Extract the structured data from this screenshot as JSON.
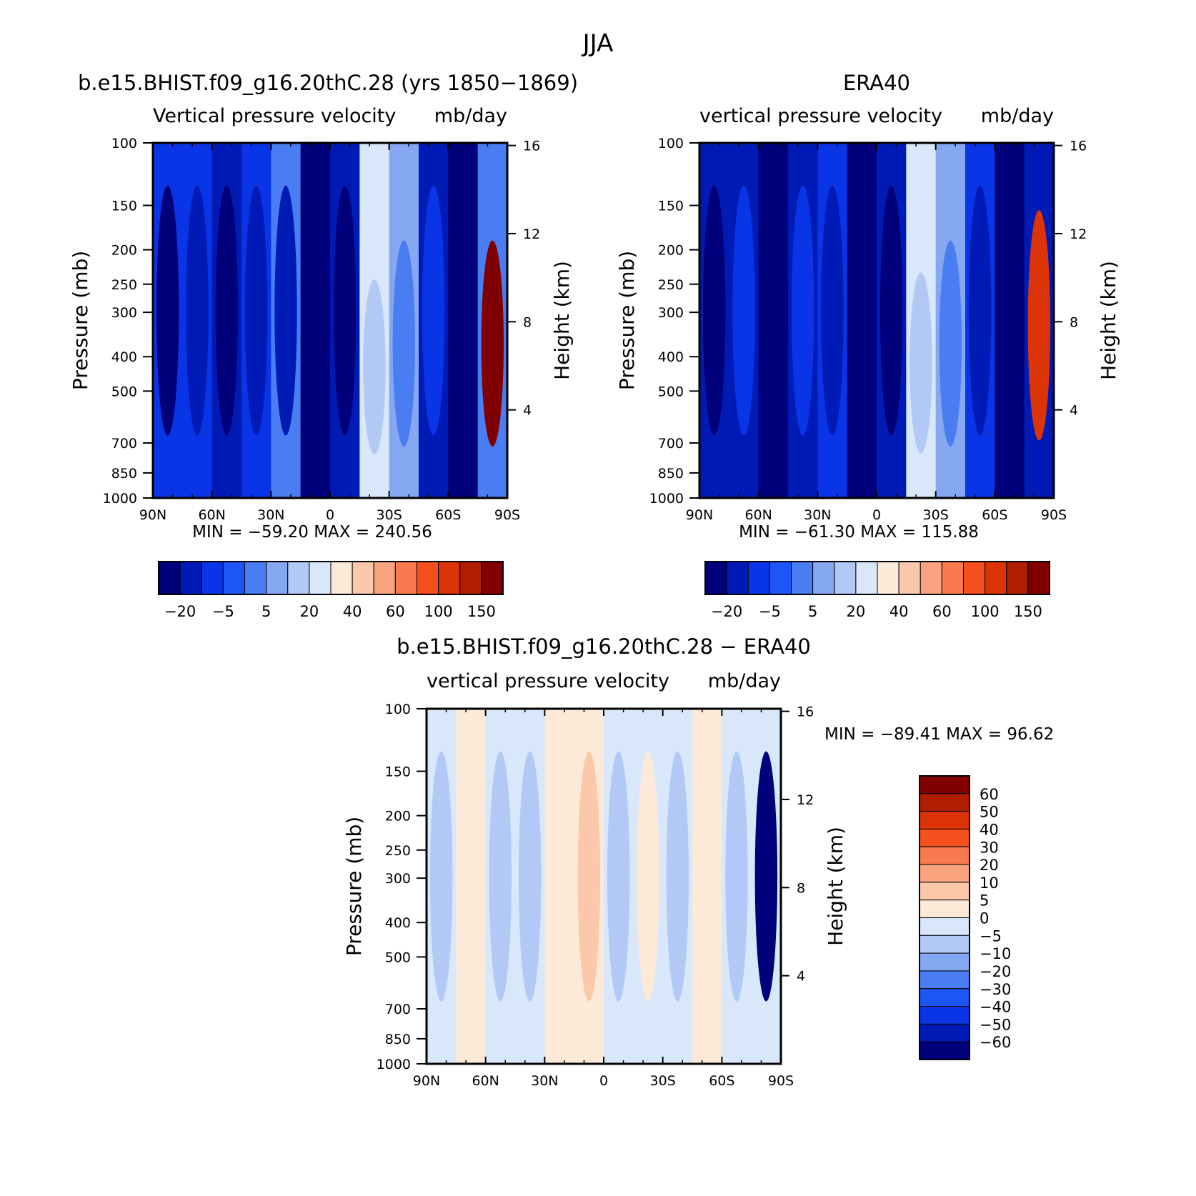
{
  "figure": {
    "title": "JJA"
  },
  "chart_data": [
    {
      "type": "heatmap",
      "title": "b.e15.BHIST.f09_g16.20thC.28 (yrs 1850−1869)",
      "subtitle_left": "Vertical pressure velocity",
      "subtitle_right": "mb/day",
      "xlabel": "",
      "ylabel": "Pressure (mb)",
      "ylabel_right": "Height (km)",
      "x_ticks": [
        "90N",
        "60N",
        "30N",
        "0",
        "30S",
        "60S",
        "90S"
      ],
      "y_ticks": [
        100,
        150,
        200,
        250,
        300,
        400,
        500,
        700,
        850,
        1000
      ],
      "y_scale": "log",
      "right_ticks": [
        16,
        12,
        8,
        4
      ],
      "min_max_text": "MIN = −59.20   MAX = 240.56",
      "colorbar_labels": [
        "−20",
        "−5",
        "5",
        "20",
        "40",
        "60",
        "100",
        "150"
      ],
      "colorbar_colors": [
        "#00007a",
        "#001bb5",
        "#0a35e6",
        "#1e56f5",
        "#4a7df2",
        "#86a8f2",
        "#b3c9f5",
        "#d8e7fa",
        "#fde9d8",
        "#fbc8ab",
        "#f9a37f",
        "#f97a4e",
        "#f5501e",
        "#dd3407",
        "#b01e02",
        "#800000"
      ],
      "columns": [
        {
          "lat": "90N",
          "base": -5,
          "strong_low": -20,
          "top": 100
        },
        {
          "lat": "75N",
          "base": -5,
          "strong_low": -10,
          "top": 100
        },
        {
          "lat": "60N",
          "base": -10,
          "strong_low": -20,
          "top": 100
        },
        {
          "lat": "45N",
          "base": -5,
          "strong_low": -10,
          "top": 100
        },
        {
          "lat": "30N",
          "base": 5,
          "strong_low": -10,
          "top": 100
        },
        {
          "lat": "10N",
          "base": -40,
          "strong_low": -59,
          "top": 180
        },
        {
          "lat": "0",
          "base": -10,
          "strong_low": -20,
          "top": 100
        },
        {
          "lat": "15S",
          "base": 30,
          "strong_low": 20,
          "top": 200
        },
        {
          "lat": "30S",
          "base": 10,
          "strong_low": 5,
          "top": 150
        },
        {
          "lat": "45S",
          "base": -10,
          "strong_low": -5,
          "top": 100
        },
        {
          "lat": "60S",
          "base": -30,
          "strong_low": -40,
          "top": 220
        },
        {
          "lat": "80S",
          "base": 5,
          "strong_low": 240,
          "top": 150
        }
      ]
    },
    {
      "type": "heatmap",
      "title": "ERA40",
      "subtitle_left": "vertical pressure velocity",
      "subtitle_right": "mb/day",
      "xlabel": "",
      "ylabel": "Pressure (mb)",
      "ylabel_right": "Height (km)",
      "x_ticks": [
        "90N",
        "60N",
        "30N",
        "0",
        "30S",
        "60S",
        "90S"
      ],
      "y_ticks": [
        100,
        150,
        200,
        250,
        300,
        400,
        500,
        700,
        850,
        1000
      ],
      "y_scale": "log",
      "right_ticks": [
        16,
        12,
        8,
        4
      ],
      "min_max_text": "MIN = −61.30   MAX = 115.88",
      "colorbar_labels": [
        "−20",
        "−5",
        "5",
        "20",
        "40",
        "60",
        "100",
        "150"
      ],
      "colorbar_colors": [
        "#00007a",
        "#001bb5",
        "#0a35e6",
        "#1e56f5",
        "#4a7df2",
        "#86a8f2",
        "#b3c9f5",
        "#d8e7fa",
        "#fde9d8",
        "#fbc8ab",
        "#f9a37f",
        "#f97a4e",
        "#f5501e",
        "#dd3407",
        "#b01e02",
        "#800000"
      ],
      "columns": [
        {
          "lat": "90N",
          "base": -10,
          "strong_low": -20,
          "top": 100
        },
        {
          "lat": "75N",
          "base": -10,
          "strong_low": -5,
          "top": 100
        },
        {
          "lat": "60N",
          "base": -20,
          "strong_low": -30,
          "top": 100
        },
        {
          "lat": "45N",
          "base": -10,
          "strong_low": -5,
          "top": 100
        },
        {
          "lat": "30N",
          "base": -5,
          "strong_low": -10,
          "top": 100
        },
        {
          "lat": "10N",
          "base": -40,
          "strong_low": -61,
          "top": 160
        },
        {
          "lat": "0",
          "base": -10,
          "strong_low": -20,
          "top": 100
        },
        {
          "lat": "15S",
          "base": 30,
          "strong_low": 20,
          "top": 190
        },
        {
          "lat": "30S",
          "base": 10,
          "strong_low": 5,
          "top": 150
        },
        {
          "lat": "45S",
          "base": -5,
          "strong_low": -10,
          "top": 100
        },
        {
          "lat": "60S",
          "base": -30,
          "strong_low": -40,
          "top": 250
        },
        {
          "lat": "80S",
          "base": -10,
          "strong_low": 115,
          "top": 120
        }
      ]
    },
    {
      "type": "heatmap",
      "title": "b.e15.BHIST.f09_g16.20thC.28 − ERA40",
      "subtitle_left": "vertical pressure velocity",
      "subtitle_right": "mb/day",
      "xlabel": "",
      "ylabel": "Pressure (mb)",
      "ylabel_right": "Height (km)",
      "x_ticks": [
        "90N",
        "60N",
        "30N",
        "0",
        "30S",
        "60S",
        "90S"
      ],
      "y_ticks": [
        100,
        150,
        200,
        250,
        300,
        400,
        500,
        700,
        850,
        1000
      ],
      "y_scale": "log",
      "right_ticks": [
        16,
        12,
        8,
        4
      ],
      "min_max_text": "MIN = −89.41   MAX =   96.62",
      "colorbar_labels": [
        "60",
        "50",
        "40",
        "30",
        "20",
        "10",
        "5",
        "0",
        "−5",
        "−10",
        "−20",
        "−30",
        "−40",
        "−50",
        "−60"
      ],
      "colorbar_colors": [
        "#800000",
        "#b01e02",
        "#dd3407",
        "#f5501e",
        "#f97a4e",
        "#f9a37f",
        "#fbc8ab",
        "#fde9d8",
        "#d8e7fa",
        "#b3c9f5",
        "#86a8f2",
        "#4a7df2",
        "#1e56f5",
        "#0a35e6",
        "#001bb5",
        "#00007a"
      ],
      "columns": [
        {
          "lat": "90N",
          "base": -2,
          "strong_low": -5,
          "top": 100
        },
        {
          "lat": "75N",
          "base": 2,
          "strong_low": 5,
          "top": 100
        },
        {
          "lat": "60N",
          "base": -2,
          "strong_low": -5,
          "top": 100
        },
        {
          "lat": "45N",
          "base": -2,
          "strong_low": -5,
          "top": 100
        },
        {
          "lat": "30N",
          "base": 2,
          "strong_low": 5,
          "top": 100
        },
        {
          "lat": "15N",
          "base": 2,
          "strong_low": 10,
          "top": 100
        },
        {
          "lat": "0",
          "base": -2,
          "strong_low": -5,
          "top": 100
        },
        {
          "lat": "15S",
          "base": -2,
          "strong_low": 5,
          "top": 100
        },
        {
          "lat": "30S",
          "base": -2,
          "strong_low": -5,
          "top": 100
        },
        {
          "lat": "45S",
          "base": 2,
          "strong_low": 5,
          "top": 100
        },
        {
          "lat": "60S",
          "base": -2,
          "strong_low": -5,
          "top": 100
        },
        {
          "lat": "80S",
          "base": -2,
          "strong_low": -89,
          "top": 100
        }
      ]
    }
  ]
}
